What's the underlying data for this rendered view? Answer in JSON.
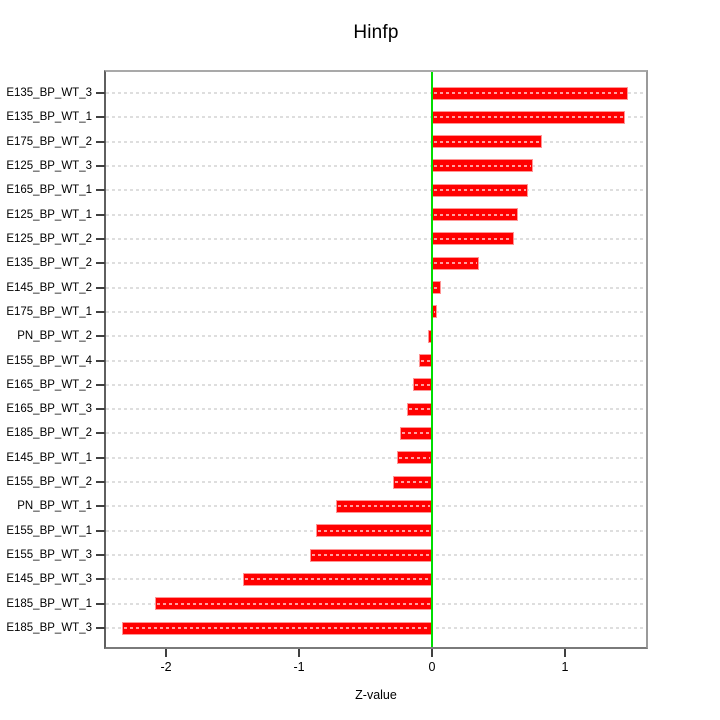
{
  "title": "Hinfp",
  "chart_data": {
    "type": "bar",
    "orientation": "horizontal",
    "title": "Hinfp",
    "xlabel": "Z-value",
    "ylabel": "",
    "categories": [
      "E135_BP_WT_3",
      "E135_BP_WT_1",
      "E175_BP_WT_2",
      "E125_BP_WT_3",
      "E165_BP_WT_1",
      "E125_BP_WT_1",
      "E125_BP_WT_2",
      "E135_BP_WT_2",
      "E145_BP_WT_2",
      "E175_BP_WT_1",
      "PN_BP_WT_2",
      "E155_BP_WT_4",
      "E165_BP_WT_2",
      "E165_BP_WT_3",
      "E185_BP_WT_2",
      "E145_BP_WT_1",
      "E155_BP_WT_2",
      "PN_BP_WT_1",
      "E155_BP_WT_1",
      "E155_BP_WT_3",
      "E145_BP_WT_3",
      "E185_BP_WT_1",
      "E185_BP_WT_3"
    ],
    "values": [
      1.47,
      1.45,
      0.83,
      0.76,
      0.72,
      0.65,
      0.62,
      0.35,
      0.07,
      0.04,
      -0.03,
      -0.1,
      -0.14,
      -0.19,
      -0.24,
      -0.26,
      -0.29,
      -0.72,
      -0.87,
      -0.92,
      -1.42,
      -2.08,
      -2.33
    ],
    "xlim": [
      -2.45,
      1.61
    ],
    "xticks": [
      -2,
      -1,
      0,
      1
    ],
    "xtick_labels": [
      "-2",
      "-1",
      "0",
      "1"
    ],
    "zero_line": 0,
    "grid": true,
    "legend": "none",
    "colors": {
      "bar_fill": "#ff0000",
      "bar_edge": "#ff9595",
      "zero_line": "#00dd00",
      "grid_line": "#dedede",
      "axis_text": "#000000",
      "plot_border": "#8a8a8a",
      "background": "#ffffff"
    }
  }
}
